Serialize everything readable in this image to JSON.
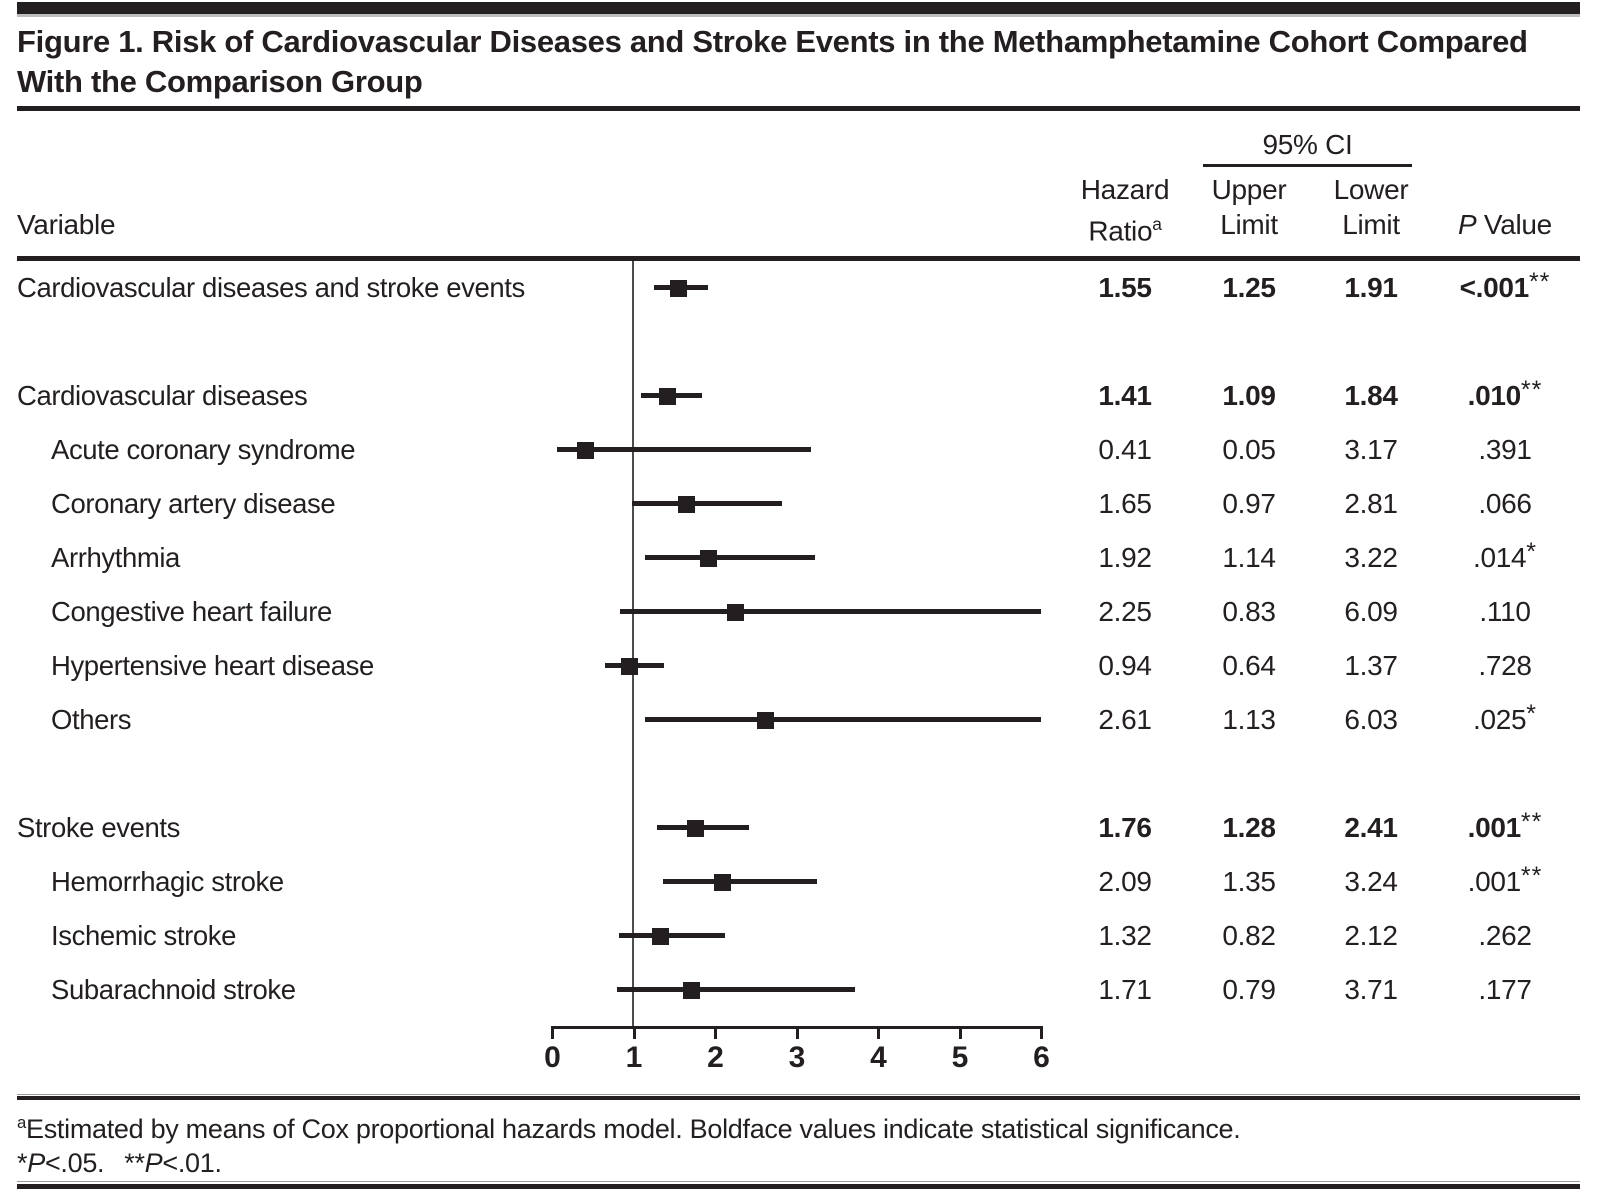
{
  "title": "Figure 1. Risk of Cardiovascular Diseases and Stroke Events in the Methamphetamine Cohort Compared With the Comparison Group",
  "header": {
    "variable": "Variable",
    "hazard_line1": "Hazard",
    "hazard_line2": "Ratio",
    "hazard_sup": "a",
    "ci_group_label": "95% CI",
    "upper_line1": "Upper",
    "upper_line2": "Limit",
    "lower_line1": "Lower",
    "lower_line2": "Limit",
    "p_italic": "P",
    "p_rest": " Value"
  },
  "chart_data": {
    "type": "forest",
    "x_axis": {
      "min": 0,
      "max": 6,
      "ticks": [
        0,
        1,
        2,
        3,
        4,
        5,
        6
      ],
      "reference_line": 1
    },
    "rows": [
      {
        "label": "Cardiovascular diseases and stroke events",
        "indent": 0,
        "bold": true,
        "hr": 1.55,
        "ci_low": 1.25,
        "ci_high": 1.91,
        "hazard_ratio": "1.55",
        "upper_limit": "1.25",
        "lower_limit": "1.91",
        "p_value": "<.001",
        "sig": "**",
        "spacer_after": true
      },
      {
        "label": "Cardiovascular diseases",
        "indent": 0,
        "bold": true,
        "hr": 1.41,
        "ci_low": 1.09,
        "ci_high": 1.84,
        "hazard_ratio": "1.41",
        "upper_limit": "1.09",
        "lower_limit": "1.84",
        "p_value": ".010",
        "sig": "**",
        "spacer_after": false
      },
      {
        "label": "Acute coronary syndrome",
        "indent": 1,
        "bold": false,
        "hr": 0.41,
        "ci_low": 0.05,
        "ci_high": 3.17,
        "hazard_ratio": "0.41",
        "upper_limit": "0.05",
        "lower_limit": "3.17",
        "p_value": ".391",
        "sig": "",
        "spacer_after": false
      },
      {
        "label": "Coronary artery disease",
        "indent": 1,
        "bold": false,
        "hr": 1.65,
        "ci_low": 0.97,
        "ci_high": 2.81,
        "hazard_ratio": "1.65",
        "upper_limit": "0.97",
        "lower_limit": "2.81",
        "p_value": ".066",
        "sig": "",
        "spacer_after": false
      },
      {
        "label": "Arrhythmia",
        "indent": 1,
        "bold": false,
        "hr": 1.92,
        "ci_low": 1.14,
        "ci_high": 3.22,
        "hazard_ratio": "1.92",
        "upper_limit": "1.14",
        "lower_limit": "3.22",
        "p_value": ".014",
        "sig": "*",
        "spacer_after": false
      },
      {
        "label": "Congestive heart failure",
        "indent": 1,
        "bold": false,
        "hr": 2.25,
        "ci_low": 0.83,
        "ci_high": 6.09,
        "hazard_ratio": "2.25",
        "upper_limit": "0.83",
        "lower_limit": "6.09",
        "p_value": ".110",
        "sig": "",
        "spacer_after": false
      },
      {
        "label": "Hypertensive heart disease",
        "indent": 1,
        "bold": false,
        "hr": 0.94,
        "ci_low": 0.64,
        "ci_high": 1.37,
        "hazard_ratio": "0.94",
        "upper_limit": "0.64",
        "lower_limit": "1.37",
        "p_value": ".728",
        "sig": "",
        "spacer_after": false
      },
      {
        "label": "Others",
        "indent": 1,
        "bold": false,
        "hr": 2.61,
        "ci_low": 1.13,
        "ci_high": 6.03,
        "hazard_ratio": "2.61",
        "upper_limit": "1.13",
        "lower_limit": "6.03",
        "p_value": ".025",
        "sig": "*",
        "spacer_after": true
      },
      {
        "label": "Stroke events",
        "indent": 0,
        "bold": true,
        "hr": 1.76,
        "ci_low": 1.28,
        "ci_high": 2.41,
        "hazard_ratio": "1.76",
        "upper_limit": "1.28",
        "lower_limit": "2.41",
        "p_value": ".001",
        "sig": "**",
        "spacer_after": false
      },
      {
        "label": "Hemorrhagic stroke",
        "indent": 1,
        "bold": false,
        "hr": 2.09,
        "ci_low": 1.35,
        "ci_high": 3.24,
        "hazard_ratio": "2.09",
        "upper_limit": "1.35",
        "lower_limit": "3.24",
        "p_value": ".001",
        "sig": "**",
        "spacer_after": false
      },
      {
        "label": "Ischemic stroke",
        "indent": 1,
        "bold": false,
        "hr": 1.32,
        "ci_low": 0.82,
        "ci_high": 2.12,
        "hazard_ratio": "1.32",
        "upper_limit": "0.82",
        "lower_limit": "2.12",
        "p_value": ".262",
        "sig": "",
        "spacer_after": false
      },
      {
        "label": "Subarachnoid stroke",
        "indent": 1,
        "bold": false,
        "hr": 1.71,
        "ci_low": 0.79,
        "ci_high": 3.71,
        "hazard_ratio": "1.71",
        "upper_limit": "0.79",
        "lower_limit": "3.71",
        "p_value": ".177",
        "sig": "",
        "spacer_after": false
      }
    ]
  },
  "footnotes": {
    "sup": "a",
    "line1": "Estimated by means of Cox proportional hazards model. Boldface values indicate statistical significance.",
    "star1": "*",
    "p1": "P",
    "rest1": "<.05.",
    "star2": "**",
    "p2": "P",
    "rest2": "<.01."
  },
  "colors": {
    "ink": "#231f20",
    "rule_gray": "#9b9b9b",
    "reference_line": "#4c4c4c"
  }
}
